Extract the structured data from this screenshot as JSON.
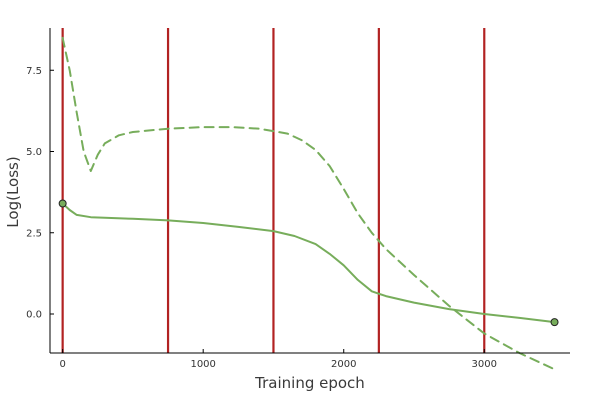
{
  "chart_data": {
    "type": "line",
    "title": "",
    "xlabel": "Training epoch",
    "ylabel": "Log(Loss)",
    "xlim": [
      -90,
      3610
    ],
    "ylim": [
      -1.2,
      8.8
    ],
    "x_ticks": [
      0,
      1000,
      2000,
      3000
    ],
    "x_tick_labels": [
      "0",
      "1000",
      "2000",
      "3000"
    ],
    "y_ticks": [
      0.0,
      2.5,
      5.0,
      7.5
    ],
    "y_tick_labels": [
      "0.0",
      "2.5",
      "5.0",
      "7.5"
    ],
    "grid": false,
    "legend": "none",
    "vertical_lines": {
      "x": [
        0,
        750,
        1500,
        2250,
        3000
      ],
      "color": "#b22222"
    },
    "series": [
      {
        "style": "solid",
        "color": "#77ad5b",
        "x": [
          0,
          50,
          100,
          200,
          300,
          500,
          750,
          1000,
          1250,
          1500,
          1650,
          1800,
          1900,
          2000,
          2100,
          2200,
          2300,
          2500,
          2750,
          3000,
          3250,
          3500
        ],
        "y": [
          3.4,
          3.2,
          3.05,
          2.98,
          2.96,
          2.93,
          2.88,
          2.8,
          2.68,
          2.55,
          2.4,
          2.15,
          1.85,
          1.5,
          1.05,
          0.7,
          0.55,
          0.35,
          0.15,
          0.0,
          -0.12,
          -0.25
        ]
      },
      {
        "style": "dashed",
        "color": "#77ad5b",
        "x": [
          0,
          50,
          100,
          150,
          200,
          250,
          300,
          400,
          500,
          750,
          1000,
          1200,
          1400,
          1600,
          1700,
          1800,
          1900,
          2000,
          2100,
          2200,
          2300,
          2500,
          2750,
          3000,
          3250,
          3500
        ],
        "y": [
          8.5,
          7.5,
          6.2,
          5.0,
          4.4,
          4.9,
          5.25,
          5.5,
          5.6,
          5.7,
          5.75,
          5.75,
          5.7,
          5.55,
          5.35,
          5.05,
          4.55,
          3.85,
          3.1,
          2.5,
          2.0,
          1.2,
          0.25,
          -0.6,
          -1.2,
          -1.7
        ]
      }
    ],
    "endpoint_markers": [
      {
        "x": 0,
        "y": 3.4
      },
      {
        "x": 3500,
        "y": -0.25
      }
    ]
  }
}
